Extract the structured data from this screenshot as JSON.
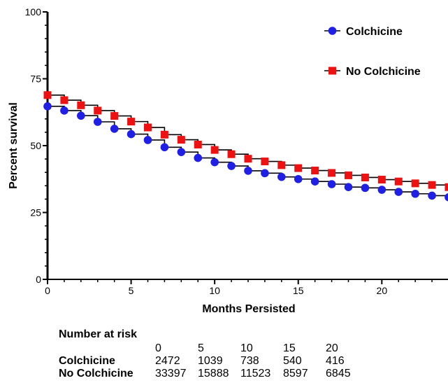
{
  "chart_data": {
    "type": "line",
    "step": true,
    "xlabel": "Months Persisted",
    "ylabel": "Percent survival",
    "xlim": [
      0,
      24
    ],
    "ylim": [
      0,
      100
    ],
    "x_ticks": [
      0,
      5,
      10,
      15,
      20
    ],
    "y_ticks": [
      0,
      25,
      50,
      75,
      100
    ],
    "grid": false,
    "legend_position": "top-right",
    "series": [
      {
        "name": "Colchicine",
        "color": "#1f1fe6",
        "marker": "circle",
        "x": [
          0,
          1,
          2,
          3,
          4,
          5,
          6,
          7,
          8,
          9,
          10,
          11,
          12,
          13,
          14,
          15,
          16,
          17,
          18,
          19,
          20,
          21,
          22,
          23,
          24
        ],
        "y": [
          64.7,
          63.1,
          61.2,
          58.9,
          56.3,
          54.3,
          52.1,
          49.4,
          47.6,
          45.4,
          43.8,
          42.4,
          40.6,
          39.7,
          38.3,
          37.5,
          36.6,
          35.6,
          34.5,
          34.2,
          33.5,
          32.7,
          32.0,
          31.3,
          30.7
        ]
      },
      {
        "name": "No Colchicine",
        "color": "#ee1111",
        "marker": "square",
        "x": [
          0,
          1,
          2,
          3,
          4,
          5,
          6,
          7,
          8,
          9,
          10,
          11,
          12,
          13,
          14,
          15,
          16,
          17,
          18,
          19,
          20,
          21,
          22,
          23,
          24
        ],
        "y": [
          68.9,
          67.0,
          65.1,
          63.1,
          61.1,
          59.0,
          56.8,
          54.1,
          52.2,
          50.4,
          48.4,
          46.8,
          45.1,
          44.1,
          42.7,
          41.6,
          40.7,
          39.8,
          38.9,
          38.1,
          37.3,
          36.6,
          35.9,
          35.3,
          34.5
        ]
      }
    ],
    "risk_table": {
      "title": "Number at risk",
      "times": [
        "0",
        "5",
        "10",
        "15",
        "20"
      ],
      "rows": [
        {
          "label": "Colchicine",
          "values": [
            "2472",
            "1039",
            "738",
            "540",
            "416"
          ]
        },
        {
          "label": "No Colchicine",
          "values": [
            "33397",
            "15888",
            "11523",
            "8597",
            "6845"
          ]
        }
      ]
    }
  }
}
